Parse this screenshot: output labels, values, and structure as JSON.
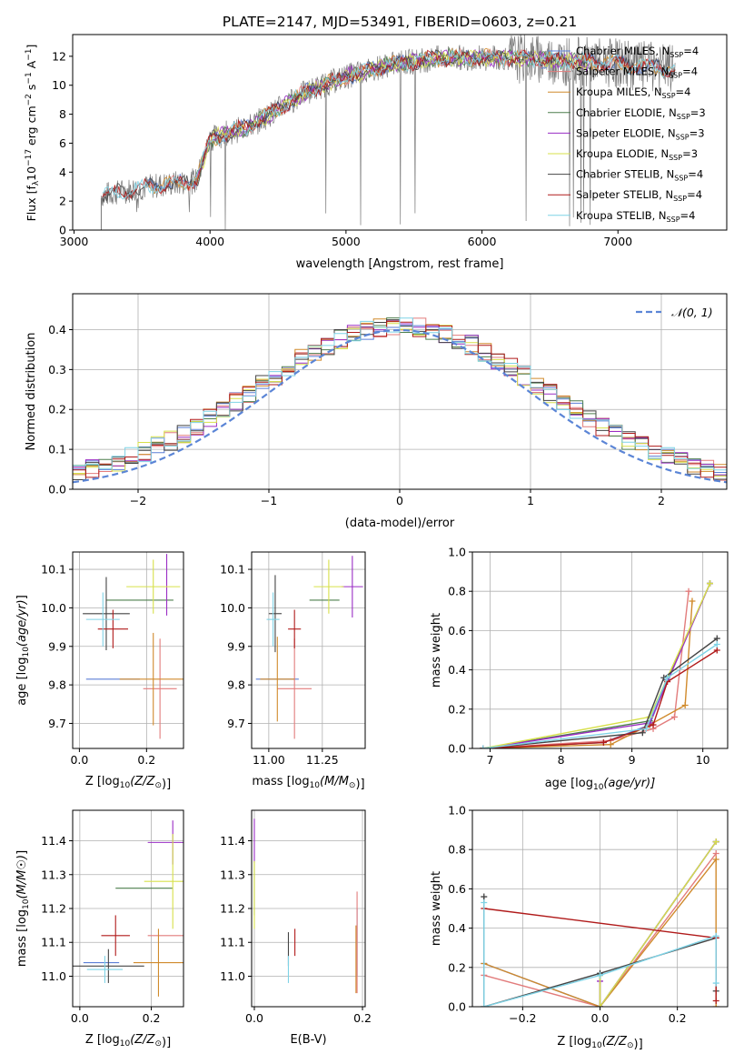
{
  "figure": {
    "title": "PLATE=2147, MJD=53491, FIBERID=0603, z=0.21"
  },
  "legend_fits": [
    {
      "label": "Chabrier MILES, N",
      "sub": "SSP",
      "tail": "=4",
      "color": "#5b7fd6"
    },
    {
      "label": "Salpeter MILES, N",
      "sub": "SSP",
      "tail": "=4",
      "color": "#e27c7c"
    },
    {
      "label": "Kroupa MILES, N",
      "sub": "SSP",
      "tail": "=4",
      "color": "#d08a2c"
    },
    {
      "label": "Chabrier ELODIE, N",
      "sub": "SSP",
      "tail": "=3",
      "color": "#4d7f4d"
    },
    {
      "label": "Salpeter ELODIE, N",
      "sub": "SSP",
      "tail": "=3",
      "color": "#9a2dc4"
    },
    {
      "label": "Kroupa ELODIE, N",
      "sub": "SSP",
      "tail": "=3",
      "color": "#d7e04a"
    },
    {
      "label": "Chabrier STELIB, N",
      "sub": "SSP",
      "tail": "=4",
      "color": "#444444"
    },
    {
      "label": "Salpeter STELIB, N",
      "sub": "SSP",
      "tail": "=4",
      "color": "#b01a1a"
    },
    {
      "label": "Kroupa STELIB, N",
      "sub": "SSP",
      "tail": "=4",
      "color": "#7fd3e6"
    }
  ],
  "chart_data": [
    {
      "id": "spectrum",
      "type": "line",
      "title": "PLATE=2147, MJD=53491, FIBERID=0603, z=0.21",
      "xlabel": "wavelength [Angstrom, rest frame]",
      "ylabel_parts": [
        "Flux [f",
        "λ",
        "10",
        "−17",
        " erg cm",
        "−2",
        " s",
        "−1",
        " A",
        "−1",
        "]"
      ],
      "xlim": [
        2990,
        7800
      ],
      "ylim": [
        0,
        13.5
      ],
      "xticks": [
        3000,
        4000,
        5000,
        6000,
        7000
      ],
      "yticks": [
        0,
        2,
        4,
        6,
        8,
        10,
        12
      ],
      "continuum_knots": [
        [
          3200,
          2.4
        ],
        [
          3550,
          3.0
        ],
        [
          3900,
          3.4
        ],
        [
          4000,
          6.3
        ],
        [
          4300,
          7.2
        ],
        [
          4700,
          9.5
        ],
        [
          5000,
          10.6
        ],
        [
          5300,
          11.4
        ],
        [
          5700,
          11.9
        ],
        [
          6200,
          11.9
        ],
        [
          7000,
          11.5
        ],
        [
          7500,
          11.0
        ]
      ],
      "data_start": 3200,
      "data_end": 7420
    },
    {
      "id": "residual-histogram",
      "type": "step",
      "xlabel": "(data-model)/error",
      "ylabel": "Normed distribution",
      "xlim": [
        -2.5,
        2.5
      ],
      "ylim": [
        0,
        0.49
      ],
      "xticks": [
        -2,
        -1,
        0,
        1,
        2
      ],
      "yticks": [
        0,
        0.1,
        0.2,
        0.3,
        0.4
      ],
      "xtick_labels": [
        "−2",
        "−1",
        "0",
        "1",
        "2"
      ],
      "yticks_labels": [
        "0.0",
        "0.1",
        "0.2",
        "0.3",
        "0.4"
      ],
      "reference_curve": {
        "label": "𝒩(0, 1)",
        "mean": 0,
        "sigma": 1,
        "color": "#5b85d6"
      },
      "bins": 50
    },
    {
      "id": "age-vs-Z",
      "type": "errorbar",
      "xlabel_text": "Z [log",
      "xlabel_sub": "10",
      "xlabel_tail": "(Z/Z",
      "xlabel_end": ")]",
      "ylabel": "age  [log10(age/yr)]",
      "xlim": [
        -0.02,
        0.31
      ],
      "ylim": [
        9.635,
        10.145
      ],
      "xticks": [
        0.0,
        0.2
      ],
      "yticks": [
        9.7,
        9.8,
        9.9,
        10.0,
        10.1
      ],
      "points": [
        {
          "series": "Chabrier MILES",
          "x": 0.1,
          "y": 9.815,
          "xerr": 0.08,
          "yerr": 0.0
        },
        {
          "series": "Salpeter MILES",
          "x": 0.24,
          "y": 9.79,
          "xerr": 0.05,
          "yerr": 0.13
        },
        {
          "series": "Kroupa MILES",
          "x": 0.22,
          "y": 9.815,
          "xerr": 0.1,
          "yerr": 0.12
        },
        {
          "series": "Chabrier ELODIE",
          "x": 0.18,
          "y": 10.02,
          "xerr": 0.1,
          "yerr": 0.0
        },
        {
          "series": "Salpeter ELODIE",
          "x": 0.26,
          "y": 10.06,
          "xerr": 0.0,
          "yerr": 0.08
        },
        {
          "series": "Kroupa ELODIE",
          "x": 0.22,
          "y": 10.055,
          "xerr": 0.08,
          "yerr": 0.07
        },
        {
          "series": "Chabrier STELIB",
          "x": 0.08,
          "y": 9.985,
          "xerr": 0.07,
          "yerr": 0.095
        },
        {
          "series": "Salpeter STELIB",
          "x": 0.1,
          "y": 9.945,
          "xerr": 0.045,
          "yerr": 0.05
        },
        {
          "series": "Kroupa STELIB",
          "x": 0.07,
          "y": 9.97,
          "xerr": 0.05,
          "yerr": 0.07
        }
      ]
    },
    {
      "id": "age-vs-mass",
      "type": "errorbar",
      "xlabel_text": "mass [log",
      "xlabel_sub": "10",
      "xlabel_tail": "(M/M",
      "xlabel_end": ")]",
      "ylabel": "",
      "xlim": [
        10.92,
        11.45
      ],
      "ylim": [
        9.635,
        10.145
      ],
      "xticks": [
        11.0,
        11.25
      ],
      "xtick_labels": [
        "11.00",
        "11.25"
      ],
      "yticks": [
        9.7,
        9.8,
        9.9,
        10.0,
        10.1
      ],
      "points": [
        {
          "series": "Chabrier MILES",
          "x": 11.04,
          "y": 9.815,
          "xerr": 0.1,
          "yerr": 0.0
        },
        {
          "series": "Salpeter MILES",
          "x": 11.12,
          "y": 9.79,
          "xerr": 0.08,
          "yerr": 0.13
        },
        {
          "series": "Kroupa MILES",
          "x": 11.04,
          "y": 9.815,
          "xerr": 0.08,
          "yerr": 0.11
        },
        {
          "series": "Chabrier ELODIE",
          "x": 11.26,
          "y": 10.02,
          "xerr": 0.07,
          "yerr": 0.0
        },
        {
          "series": "Salpeter ELODIE",
          "x": 11.39,
          "y": 10.055,
          "xerr": 0.05,
          "yerr": 0.08
        },
        {
          "series": "Kroupa ELODIE",
          "x": 11.28,
          "y": 10.055,
          "xerr": 0.07,
          "yerr": 0.07
        },
        {
          "series": "Chabrier STELIB",
          "x": 11.03,
          "y": 9.985,
          "xerr": 0.03,
          "yerr": 0.1
        },
        {
          "series": "Salpeter STELIB",
          "x": 11.12,
          "y": 9.945,
          "xerr": 0.03,
          "yerr": 0.05
        },
        {
          "series": "Kroupa STELIB",
          "x": 11.02,
          "y": 9.97,
          "xerr": 0.03,
          "yerr": 0.07
        }
      ]
    },
    {
      "id": "mass-weight-vs-age",
      "type": "line",
      "xlabel_text": "age  [log",
      "xlabel_sub": "10",
      "xlabel_tail": "(age/yr)]",
      "ylabel": "mass weight",
      "xlim": [
        6.75,
        10.35
      ],
      "ylim": [
        0,
        1.0
      ],
      "xticks": [
        7,
        8,
        9,
        10
      ],
      "yticks": [
        0,
        0.2,
        0.4,
        0.6,
        0.8,
        1.0
      ],
      "ytick_labels": [
        "0.0",
        "0.2",
        "0.4",
        "0.6",
        "0.8",
        "1.0"
      ],
      "series": [
        {
          "name": "Chabrier MILES",
          "points": [
            [
              6.9,
              0.0
            ],
            [
              8.6,
              0.03
            ],
            [
              9.25,
              0.12
            ],
            [
              9.5,
              0.35
            ],
            [
              10.1,
              0.84
            ]
          ]
        },
        {
          "name": "Salpeter MILES",
          "points": [
            [
              6.9,
              0.0
            ],
            [
              8.7,
              0.04
            ],
            [
              9.3,
              0.1
            ],
            [
              9.6,
              0.16
            ],
            [
              9.8,
              0.8
            ]
          ]
        },
        {
          "name": "Kroupa MILES",
          "points": [
            [
              6.9,
              0.0
            ],
            [
              8.7,
              0.02
            ],
            [
              9.25,
              0.12
            ],
            [
              9.75,
              0.22
            ],
            [
              9.85,
              0.75
            ]
          ]
        },
        {
          "name": "Chabrier ELODIE",
          "points": [
            [
              6.9,
              0.0
            ],
            [
              9.25,
              0.14
            ],
            [
              10.1,
              0.84
            ]
          ]
        },
        {
          "name": "Salpeter ELODIE",
          "points": [
            [
              6.9,
              0.0
            ],
            [
              9.25,
              0.13
            ],
            [
              10.1,
              0.84
            ]
          ]
        },
        {
          "name": "Kroupa ELODIE",
          "points": [
            [
              6.9,
              0.0
            ],
            [
              9.25,
              0.16
            ],
            [
              10.1,
              0.84
            ]
          ]
        },
        {
          "name": "Chabrier STELIB",
          "points": [
            [
              6.9,
              0.0
            ],
            [
              9.15,
              0.08
            ],
            [
              9.45,
              0.36
            ],
            [
              10.2,
              0.56
            ]
          ]
        },
        {
          "name": "Salpeter STELIB",
          "points": [
            [
              6.9,
              0.0
            ],
            [
              8.6,
              0.03
            ],
            [
              9.3,
              0.12
            ],
            [
              9.5,
              0.34
            ],
            [
              10.2,
              0.5
            ]
          ]
        },
        {
          "name": "Kroupa STELIB",
          "points": [
            [
              6.9,
              0.0
            ],
            [
              9.2,
              0.1
            ],
            [
              9.5,
              0.36
            ],
            [
              10.2,
              0.53
            ]
          ]
        }
      ]
    },
    {
      "id": "mass-vs-Z",
      "type": "errorbar",
      "xlabel_text": "Z [log",
      "xlabel_sub": "10",
      "xlabel_tail": "(Z/Z",
      "xlabel_end": ")]",
      "ylabel": "mass [log10(M/M☉)]",
      "xlim": [
        -0.02,
        0.29
      ],
      "ylim": [
        10.91,
        11.49
      ],
      "xticks": [
        0.0,
        0.2
      ],
      "yticks": [
        11.0,
        11.1,
        11.2,
        11.3,
        11.4
      ],
      "points": [
        {
          "series": "Chabrier MILES",
          "x": 0.06,
          "y": 11.04,
          "xerr": 0.05,
          "yerr": 0.0
        },
        {
          "series": "Salpeter MILES",
          "x": 0.24,
          "y": 11.12,
          "xerr": 0.05,
          "yerr": 0.0
        },
        {
          "series": "Kroupa MILES",
          "x": 0.22,
          "y": 11.04,
          "xerr": 0.07,
          "yerr": 0.1
        },
        {
          "series": "Chabrier ELODIE",
          "x": 0.18,
          "y": 11.26,
          "xerr": 0.08,
          "yerr": 0.0
        },
        {
          "series": "Salpeter ELODIE",
          "x": 0.26,
          "y": 11.395,
          "xerr": 0.07,
          "yerr": 0.065
        },
        {
          "series": "Kroupa ELODIE",
          "x": 0.26,
          "y": 11.28,
          "xerr": 0.08,
          "yerr": 0.14
        },
        {
          "series": "Chabrier STELIB",
          "x": 0.08,
          "y": 11.03,
          "xerr": 0.1,
          "yerr": 0.05
        },
        {
          "series": "Salpeter STELIB",
          "x": 0.1,
          "y": 11.12,
          "xerr": 0.04,
          "yerr": 0.06
        },
        {
          "series": "Kroupa STELIB",
          "x": 0.07,
          "y": 11.02,
          "xerr": 0.05,
          "yerr": 0.04
        }
      ]
    },
    {
      "id": "mass-vs-EBV",
      "type": "errorbar",
      "xlabel": "E(B-V)",
      "ylabel": "",
      "xlim": [
        -0.005,
        0.205
      ],
      "ylim": [
        10.91,
        11.49
      ],
      "xticks": [
        0.0,
        0.2
      ],
      "xtick_labels": [
        "0.0",
        "0.2"
      ],
      "yticks": [
        11.0,
        11.1,
        11.2,
        11.3,
        11.4
      ],
      "points": [
        {
          "series": "Chabrier MILES",
          "x": 0.19,
          "y": 11.1,
          "xerr": 0.0,
          "yerr": 0.1
        },
        {
          "series": "Salpeter MILES",
          "x": 0.19,
          "y": 11.1,
          "xerr": 0.0,
          "yerr": 0.15
        },
        {
          "series": "Kroupa MILES",
          "x": 0.188,
          "y": 11.05,
          "xerr": 0.0,
          "yerr": 0.1
        },
        {
          "series": "Chabrier ELODIE",
          "x": 0.0,
          "y": 11.26,
          "xerr": 0.0,
          "yerr": 0.08
        },
        {
          "series": "Salpeter ELODIE",
          "x": 0.0,
          "y": 11.4,
          "xerr": 0.0,
          "yerr": 0.065
        },
        {
          "series": "Kroupa ELODIE",
          "x": 0.0,
          "y": 11.24,
          "xerr": 0.0,
          "yerr": 0.1
        },
        {
          "series": "Chabrier STELIB",
          "x": 0.063,
          "y": 11.08,
          "xerr": 0.0,
          "yerr": 0.05
        },
        {
          "series": "Salpeter STELIB",
          "x": 0.075,
          "y": 11.1,
          "xerr": 0.0,
          "yerr": 0.04
        },
        {
          "series": "Kroupa STELIB",
          "x": 0.063,
          "y": 11.02,
          "xerr": 0.0,
          "yerr": 0.04
        }
      ]
    },
    {
      "id": "mass-weight-vs-Z",
      "type": "line",
      "xlabel_text": "Z [log",
      "xlabel_sub": "10",
      "xlabel_tail": "(Z/Z",
      "xlabel_end": ")]",
      "ylabel": "mass weight",
      "xlim": [
        -0.33,
        0.33
      ],
      "ylim": [
        0,
        1.0
      ],
      "xticks": [
        -0.2,
        0.0,
        0.2
      ],
      "xtick_labels": [
        "−0.2",
        "0.0",
        "0.2"
      ],
      "yticks": [
        0,
        0.2,
        0.4,
        0.6,
        0.8,
        1.0
      ],
      "ytick_labels": [
        "0.0",
        "0.2",
        "0.4",
        "0.6",
        "0.8",
        "1.0"
      ],
      "series": [
        {
          "name": "Chabrier MILES",
          "points": [
            [
              -0.3,
              0.22
            ],
            [
              0.0,
              0.0
            ],
            [
              0.3,
              0.84
            ]
          ]
        },
        {
          "name": "Salpeter MILES",
          "points": [
            [
              -0.3,
              0.16
            ],
            [
              0.0,
              0.0
            ],
            [
              0.3,
              0.78
            ]
          ]
        },
        {
          "name": "Kroupa MILES",
          "points": [
            [
              -0.3,
              0.22
            ],
            [
              0.0,
              0.0
            ],
            [
              0.3,
              0.75
            ],
            [
              0.3,
              0.0
            ]
          ]
        },
        {
          "name": "Chabrier ELODIE",
          "points": [
            [
              0.0,
              0.16
            ],
            [
              0.0,
              0.0
            ],
            [
              0.3,
              0.84
            ]
          ]
        },
        {
          "name": "Salpeter ELODIE",
          "points": [
            [
              0.0,
              0.13
            ],
            [
              0.0,
              0.0
            ],
            [
              0.3,
              0.84
            ]
          ]
        },
        {
          "name": "Kroupa ELODIE",
          "points": [
            [
              0.0,
              0.16
            ],
            [
              0.0,
              0.0
            ],
            [
              0.3,
              0.84
            ]
          ]
        },
        {
          "name": "Chabrier STELIB",
          "points": [
            [
              -0.3,
              0.56
            ],
            [
              -0.3,
              0.0
            ],
            [
              0.0,
              0.17
            ],
            [
              0.3,
              0.35
            ],
            [
              0.3,
              0.08
            ]
          ]
        },
        {
          "name": "Salpeter STELIB",
          "points": [
            [
              -0.3,
              0.5
            ],
            [
              0.3,
              0.35
            ],
            [
              0.3,
              0.03
            ]
          ]
        },
        {
          "name": "Kroupa STELIB",
          "points": [
            [
              -0.3,
              0.53
            ],
            [
              -0.3,
              0.0
            ],
            [
              0.0,
              0.16
            ],
            [
              0.3,
              0.36
            ],
            [
              0.3,
              0.12
            ]
          ]
        }
      ]
    }
  ]
}
